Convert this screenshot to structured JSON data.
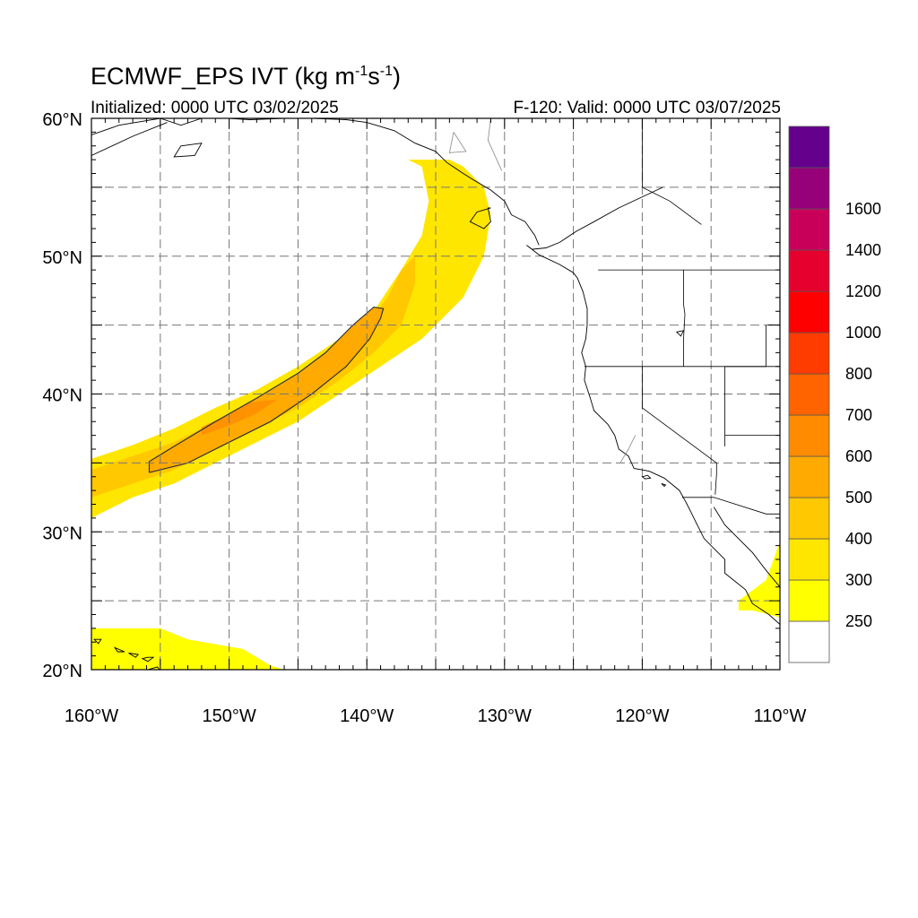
{
  "header": {
    "title_prefix": "ECMWF_EPS IVT (kg m",
    "title_exp1": "-1",
    "title_mid": "s",
    "title_exp2": "-1",
    "title_suffix": ")",
    "initialized": "Initialized: 0000 UTC 03/02/2025",
    "valid": "F-120: Valid: 0000 UTC 03/07/2025"
  },
  "map": {
    "lon_range": [
      -160,
      -110
    ],
    "lat_range": [
      20,
      60
    ],
    "lon_ticks": [
      {
        "lon": -160,
        "label": "160°W"
      },
      {
        "lon": -150,
        "label": "150°W"
      },
      {
        "lon": -140,
        "label": "140°W"
      },
      {
        "lon": -130,
        "label": "130°W"
      },
      {
        "lon": -120,
        "label": "120°W"
      },
      {
        "lon": -110,
        "label": "110°W"
      }
    ],
    "lat_ticks": [
      {
        "lat": 60,
        "label": "60°N"
      },
      {
        "lat": 50,
        "label": "50°N"
      },
      {
        "lat": 40,
        "label": "40°N"
      },
      {
        "lat": 30,
        "label": "30°N"
      },
      {
        "lat": 20,
        "label": "20°N"
      }
    ],
    "gridline_lons": [
      -155,
      -150,
      -145,
      -140,
      -135,
      -130,
      -125,
      -120,
      -115
    ],
    "gridline_lats": [
      25,
      30,
      35,
      40,
      45,
      50,
      55
    ],
    "features": {
      "ar_outer_lower_edge": [
        [
          -160,
          31
        ],
        [
          -157,
          32.5
        ],
        [
          -154,
          33.5
        ],
        [
          -151,
          35
        ],
        [
          -148,
          36.5
        ],
        [
          -145,
          38
        ],
        [
          -142,
          40
        ],
        [
          -139,
          42
        ],
        [
          -136,
          44
        ],
        [
          -133,
          47
        ],
        [
          -131.5,
          50
        ],
        [
          -131,
          53
        ],
        [
          -131.5,
          55
        ],
        [
          -133,
          56.5
        ]
      ],
      "ar_outer_upper_edge": [
        [
          -160,
          35.3
        ],
        [
          -157,
          36.3
        ],
        [
          -154,
          37.5
        ],
        [
          -151,
          39
        ],
        [
          -148,
          40.3
        ],
        [
          -145,
          42
        ],
        [
          -142,
          44
        ],
        [
          -139.5,
          46
        ],
        [
          -137.5,
          49
        ],
        [
          -136,
          51.5
        ],
        [
          -135.5,
          54
        ],
        [
          -136,
          56.5
        ],
        [
          -137,
          57
        ],
        [
          -134,
          57
        ]
      ],
      "ar_band_400_lower": [
        [
          -160,
          32.5
        ],
        [
          -157,
          33.5
        ],
        [
          -154,
          34.5
        ],
        [
          -151,
          36
        ],
        [
          -148,
          37.5
        ],
        [
          -145,
          39
        ],
        [
          -142,
          41
        ],
        [
          -139.5,
          43
        ],
        [
          -137.5,
          45
        ],
        [
          -136.5,
          48
        ],
        [
          -136.5,
          50
        ]
      ],
      "ar_band_400_upper": [
        [
          -160,
          34.5
        ],
        [
          -157,
          35.5
        ],
        [
          -154,
          36.5
        ],
        [
          -151,
          38
        ],
        [
          -148,
          39.5
        ],
        [
          -145,
          41
        ],
        [
          -142,
          43
        ],
        [
          -140,
          45
        ],
        [
          -138.5,
          47
        ],
        [
          -137.5,
          49
        ],
        [
          -136.5,
          50
        ]
      ],
      "ar_core_contour": [
        [
          -155.8,
          34.3
        ],
        [
          -153,
          35
        ],
        [
          -150,
          36.5
        ],
        [
          -147,
          38
        ],
        [
          -144,
          40
        ],
        [
          -141.5,
          42
        ],
        [
          -139.8,
          44
        ],
        [
          -139,
          45.5
        ],
        [
          -138.8,
          46.2
        ],
        [
          -139.5,
          46.3
        ],
        [
          -141,
          45
        ],
        [
          -143,
          43
        ],
        [
          -145,
          41.5
        ],
        [
          -148,
          39.7
        ],
        [
          -151,
          38
        ],
        [
          -154,
          36.2
        ],
        [
          -155.8,
          35.1
        ]
      ],
      "ar_core_peak": [
        [
          -152,
          37
        ],
        [
          -150,
          37.7
        ],
        [
          -148,
          38.6
        ],
        [
          -146.5,
          39.6
        ],
        [
          -148.5,
          39.4
        ],
        [
          -150.5,
          38.3
        ],
        [
          -152,
          37.6
        ]
      ],
      "south_band_hawaii": [
        [
          -160,
          23
        ],
        [
          -155,
          23
        ],
        [
          -153,
          22.2
        ],
        [
          -149,
          21.5
        ],
        [
          -147,
          20.3
        ],
        [
          -146,
          20
        ],
        [
          -160,
          20
        ]
      ],
      "baja_patch": [
        [
          -113,
          25
        ],
        [
          -111,
          26.5
        ],
        [
          -110,
          29.3
        ],
        [
          -110,
          23.8
        ],
        [
          -112,
          24.3
        ],
        [
          -113,
          24.3
        ]
      ],
      "coastlines": [
        [
          [
            -118.5,
            55
          ],
          [
            -121.7,
            53.5
          ],
          [
            -123.5,
            52.5
          ],
          [
            -124.8,
            51.8
          ],
          [
            -126,
            51
          ],
          [
            -127,
            50.6
          ],
          [
            -128,
            50.5
          ],
          [
            -128.4,
            50.8
          ],
          [
            -127.5,
            50.1
          ],
          [
            -126,
            49.4
          ],
          [
            -125,
            48.8
          ],
          [
            -124.7,
            48.4
          ],
          [
            -124.3,
            47.4
          ],
          [
            -124,
            46.2
          ],
          [
            -124,
            45
          ],
          [
            -124.1,
            44
          ],
          [
            -124.4,
            43
          ],
          [
            -124.1,
            42
          ],
          [
            -124.2,
            41
          ],
          [
            -123.8,
            39.8
          ],
          [
            -123.5,
            38.8
          ],
          [
            -122.5,
            37.8
          ],
          [
            -122,
            37
          ],
          [
            -121.7,
            36
          ],
          [
            -121,
            35.5
          ],
          [
            -120.6,
            34.6
          ],
          [
            -119.5,
            34.4
          ],
          [
            -118.4,
            33.9
          ],
          [
            -117.3,
            33
          ],
          [
            -116.8,
            32.1
          ],
          [
            -116.5,
            31.5
          ],
          [
            -116,
            30.5
          ],
          [
            -115.5,
            29.5
          ],
          [
            -114,
            28
          ],
          [
            -114,
            27
          ],
          [
            -112.5,
            25.8
          ],
          [
            -112,
            24.8
          ],
          [
            -110.8,
            24
          ],
          [
            -109.8,
            23.1
          ],
          [
            -110,
            22.8
          ]
        ],
        [
          [
            -114.8,
            31.8
          ],
          [
            -114,
            30.5
          ],
          [
            -113,
            29.5
          ],
          [
            -112,
            28.5
          ],
          [
            -111,
            27.2
          ],
          [
            -110,
            26
          ],
          [
            -110,
            25
          ]
        ],
        [
          [
            -160,
            58.8
          ],
          [
            -158,
            59.5
          ],
          [
            -155,
            60
          ],
          [
            -153.5,
            59.5
          ],
          [
            -152,
            60
          ],
          [
            -150,
            60
          ],
          [
            -148.5,
            59.9
          ],
          [
            -146,
            60
          ],
          [
            -144,
            60
          ],
          [
            -141.5,
            59.9
          ],
          [
            -140,
            59.7
          ],
          [
            -138,
            59.1
          ],
          [
            -136.5,
            58.2
          ],
          [
            -135,
            57.6
          ],
          [
            -134.2,
            56.8
          ],
          [
            -133,
            56
          ],
          [
            -132.2,
            55.5
          ],
          [
            -131,
            54.8
          ],
          [
            -130,
            54
          ],
          [
            -129.5,
            53
          ],
          [
            -128.5,
            52.5
          ],
          [
            -127.8,
            51.5
          ],
          [
            -127.5,
            50.8
          ]
        ],
        [
          [
            -160,
            57.3
          ],
          [
            -157,
            58.7
          ],
          [
            -154.5,
            59.7
          ]
        ]
      ],
      "islands": [
        [
          [
            -131,
            53.5
          ],
          [
            -132,
            53.2
          ],
          [
            -132.5,
            52.5
          ],
          [
            -131.5,
            52
          ],
          [
            -131,
            52.5
          ],
          [
            -131.2,
            53.5
          ]
        ],
        [
          [
            -153.5,
            58
          ],
          [
            -152,
            58.2
          ],
          [
            -152.5,
            57.3
          ],
          [
            -154,
            57.2
          ],
          [
            -153.5,
            58
          ]
        ],
        [
          [
            -120,
            34
          ],
          [
            -119.6,
            34.1
          ],
          [
            -119.4,
            33.9
          ],
          [
            -119.8,
            33.85
          ],
          [
            -120,
            34
          ]
        ],
        [
          [
            -118.6,
            33.5
          ],
          [
            -118.3,
            33.4
          ],
          [
            -118.4,
            33.3
          ],
          [
            -118.6,
            33.5
          ]
        ],
        [
          [
            -155.9,
            20
          ],
          [
            -155.2,
            20.2
          ],
          [
            -154.8,
            19.6
          ],
          [
            -155.4,
            19.1
          ],
          [
            -155.9,
            19.6
          ],
          [
            -155.9,
            20
          ]
        ],
        [
          [
            -157.3,
            21.2
          ],
          [
            -156.6,
            21.1
          ],
          [
            -156.8,
            20.9
          ],
          [
            -157.3,
            21.2
          ]
        ],
        [
          [
            -158.3,
            21.6
          ],
          [
            -157.6,
            21.3
          ],
          [
            -158.1,
            21.3
          ],
          [
            -158.3,
            21.6
          ]
        ],
        [
          [
            -159.8,
            22.2
          ],
          [
            -159.3,
            22.2
          ],
          [
            -159.5,
            21.9
          ],
          [
            -159.8,
            22.2
          ]
        ],
        [
          [
            -155.5,
            20.9
          ],
          [
            -155.9,
            20.6
          ],
          [
            -156.3,
            20.8
          ],
          [
            -155.9,
            20.9
          ],
          [
            -155.5,
            20.9
          ]
        ],
        [
          [
            -117.5,
            44.5
          ],
          [
            -117,
            44.6
          ],
          [
            -117.2,
            44.2
          ],
          [
            -117.5,
            44.5
          ]
        ]
      ],
      "borders": [
        [
          [
            -123.2,
            49
          ],
          [
            -116,
            49
          ],
          [
            -110,
            49
          ]
        ],
        [
          [
            -124.2,
            42
          ],
          [
            -111,
            42
          ],
          [
            -110,
            42
          ]
        ],
        [
          [
            -120,
            42
          ],
          [
            -120,
            39
          ],
          [
            -114.6,
            35
          ],
          [
            -114.6,
            34.2
          ],
          [
            -114.7,
            32.7
          ]
        ],
        [
          [
            -117.1,
            32.5
          ],
          [
            -114.8,
            32.5
          ],
          [
            -111,
            31.3
          ],
          [
            -110,
            31.3
          ]
        ],
        [
          [
            -117,
            49
          ],
          [
            -117,
            46.5
          ],
          [
            -116.9,
            45.8
          ],
          [
            -117,
            44
          ],
          [
            -117,
            42
          ]
        ],
        [
          [
            -111,
            45
          ],
          [
            -111,
            42
          ],
          [
            -114,
            42
          ],
          [
            -114,
            37
          ],
          [
            -114,
            36.2
          ]
        ],
        [
          [
            -114,
            37
          ],
          [
            -111,
            37
          ],
          [
            -110,
            37
          ]
        ],
        [
          [
            -110.9,
            45
          ],
          [
            -110,
            45
          ]
        ],
        [
          [
            -120,
            60
          ],
          [
            -120,
            55
          ],
          [
            -118,
            54
          ],
          [
            -115.7,
            52.3
          ]
        ]
      ],
      "rivers_and_lakes": [
        [
          [
            -121.6,
            35
          ],
          [
            -121,
            36
          ],
          [
            -120.5,
            37
          ]
        ],
        [
          [
            -131,
            60
          ],
          [
            -131.2,
            58.4
          ],
          [
            -130.2,
            56.2
          ]
        ],
        [
          [
            -133.7,
            59
          ],
          [
            -134,
            57.5
          ],
          [
            -132.8,
            57.6
          ],
          [
            -133.7,
            59
          ]
        ]
      ]
    }
  },
  "colorbar": {
    "colors": [
      "#ffffff",
      "#ffff00",
      "#ffe600",
      "#ffc800",
      "#ffaa00",
      "#ff8c00",
      "#ff6400",
      "#ff3c00",
      "#ff0000",
      "#e6002d",
      "#c8005a",
      "#960078",
      "#64008c"
    ],
    "labels": [
      "250",
      "300",
      "400",
      "500",
      "600",
      "700",
      "800",
      "1000",
      "1200",
      "1400",
      "1600"
    ]
  }
}
